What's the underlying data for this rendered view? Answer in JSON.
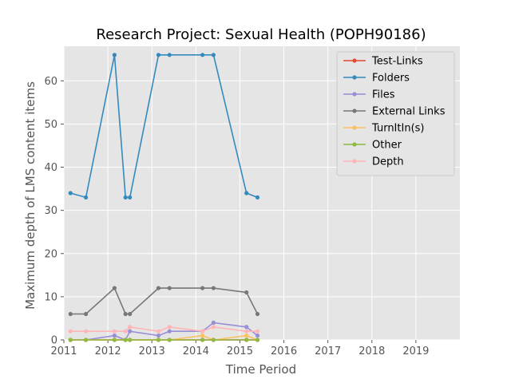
{
  "chart_data": {
    "type": "line",
    "title": "Research Project: Sexual Health (POPH90186)",
    "xlabel": "Time Period",
    "ylabel": "Maximum depth of LMS content items",
    "xlim": [
      2011,
      2020
    ],
    "ylim": [
      0,
      68
    ],
    "xticks": [
      "2011",
      "2012",
      "2013",
      "2014",
      "2015",
      "2016",
      "2017",
      "2018",
      "2019"
    ],
    "yticks": [
      "0",
      "10",
      "20",
      "30",
      "40",
      "50",
      "60"
    ],
    "grid": true,
    "legend_position": "top-right",
    "x": [
      2011.15,
      2011.5,
      2012.15,
      2012.4,
      2012.5,
      2013.15,
      2013.4,
      2014.15,
      2014.4,
      2015.15,
      2015.4
    ],
    "series": [
      {
        "name": "Test-Links",
        "color": "#e24a33",
        "values": [
          0,
          0,
          0,
          0,
          0,
          0,
          0,
          0,
          0,
          0,
          0
        ]
      },
      {
        "name": "Folders",
        "color": "#348abd",
        "values": [
          34,
          33,
          66,
          33,
          33,
          66,
          66,
          66,
          66,
          34,
          33
        ]
      },
      {
        "name": "Files",
        "color": "#988ed5",
        "values": [
          0,
          0,
          1,
          0,
          2,
          1,
          2,
          2,
          4,
          3,
          1
        ]
      },
      {
        "name": "External Links",
        "color": "#777777",
        "values": [
          6,
          6,
          12,
          6,
          6,
          12,
          12,
          12,
          12,
          11,
          6
        ]
      },
      {
        "name": "TurnItIn(s)",
        "color": "#fbc15e",
        "values": [
          0,
          0,
          0,
          0,
          0,
          0,
          0,
          1,
          0,
          1,
          0
        ]
      },
      {
        "name": "Other",
        "color": "#8eba42",
        "values": [
          0,
          0,
          0,
          0,
          0,
          0,
          0,
          0,
          0,
          0,
          0
        ]
      },
      {
        "name": "Depth",
        "color": "#ffb5b8",
        "values": [
          2,
          2,
          2,
          2,
          3,
          2,
          3,
          2,
          3,
          2,
          2
        ]
      }
    ]
  }
}
